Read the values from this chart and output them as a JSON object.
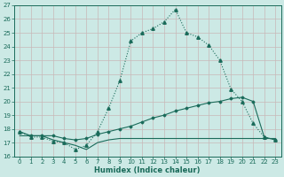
{
  "xlabel": "Humidex (Indice chaleur)",
  "bg_color": "#cce9e5",
  "grid_color": "#b8d8d4",
  "line_color": "#1a6b5a",
  "xlim": [
    -0.5,
    23.5
  ],
  "ylim": [
    16,
    27
  ],
  "xticks": [
    0,
    1,
    2,
    3,
    4,
    5,
    6,
    7,
    8,
    9,
    10,
    11,
    12,
    13,
    14,
    15,
    16,
    17,
    18,
    19,
    20,
    21,
    22,
    23
  ],
  "yticks": [
    16,
    17,
    18,
    19,
    20,
    21,
    22,
    23,
    24,
    25,
    26,
    27
  ],
  "line1_x": [
    0,
    1,
    2,
    3,
    4,
    5,
    6,
    7,
    8,
    9,
    10,
    11,
    12,
    13,
    14,
    15,
    16,
    17,
    18,
    19,
    20,
    21,
    22,
    23
  ],
  "line1_y": [
    17.8,
    17.4,
    17.4,
    17.1,
    17.0,
    16.5,
    16.8,
    17.8,
    19.5,
    21.5,
    24.4,
    25.0,
    25.3,
    25.8,
    26.7,
    25.0,
    24.7,
    24.1,
    23.0,
    20.9,
    20.0,
    18.4,
    17.4,
    17.2
  ],
  "line2_x": [
    0,
    1,
    2,
    3,
    4,
    5,
    6,
    7,
    8,
    9,
    10,
    11,
    12,
    13,
    14,
    15,
    16,
    17,
    18,
    19,
    20,
    21,
    22,
    23
  ],
  "line2_y": [
    17.8,
    17.5,
    17.5,
    17.5,
    17.3,
    17.2,
    17.3,
    17.6,
    17.8,
    18.0,
    18.2,
    18.5,
    18.8,
    19.0,
    19.3,
    19.5,
    19.7,
    19.9,
    20.0,
    20.2,
    20.3,
    20.0,
    17.4,
    17.2
  ],
  "line3_x": [
    0,
    1,
    2,
    3,
    4,
    5,
    6,
    7,
    8,
    9,
    10,
    11,
    12,
    13,
    14,
    15,
    16,
    17,
    18,
    19,
    20,
    21,
    22,
    23
  ],
  "line3_y": [
    17.5,
    17.5,
    17.5,
    17.2,
    17.0,
    16.8,
    16.5,
    17.0,
    17.2,
    17.3,
    17.3,
    17.3,
    17.3,
    17.3,
    17.3,
    17.3,
    17.3,
    17.3,
    17.3,
    17.3,
    17.3,
    17.3,
    17.3,
    17.3
  ]
}
